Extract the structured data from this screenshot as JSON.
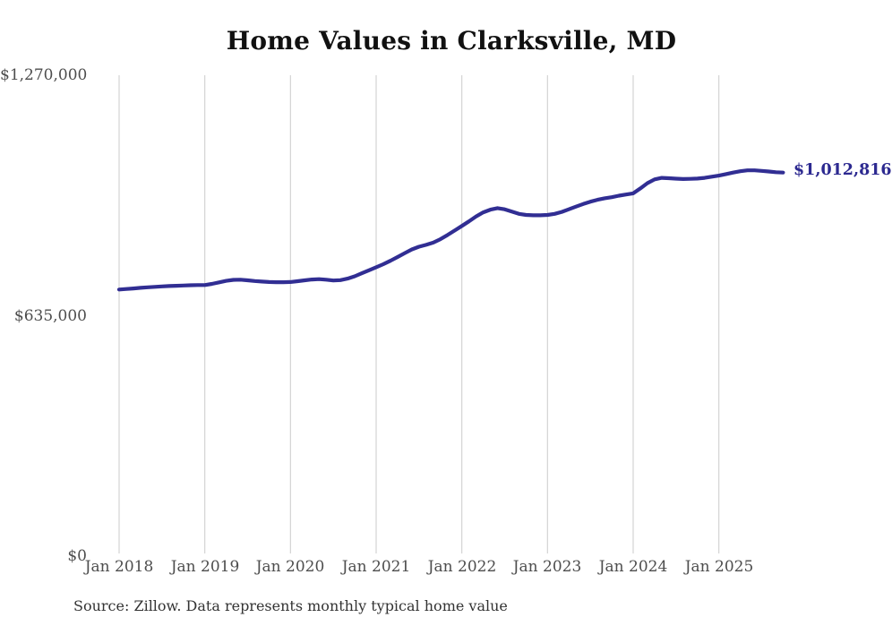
{
  "page": {
    "background": "#ffffff"
  },
  "title": {
    "text": "Home Values in Clarksville, MD",
    "color": "#111111"
  },
  "end_label": {
    "text": "$1,012,816",
    "color": "#2c2990"
  },
  "source_note": {
    "text": "Source: Zillow. Data represents monthly typical home value",
    "color": "#333333"
  },
  "colors": {
    "line": "#312e93",
    "gridline": "#cbcbcb",
    "tick_text": "#4d4d4d",
    "title_text": "#111111",
    "source_text": "#333333",
    "end_label_text": "#2c2990",
    "background": "#ffffff"
  },
  "chart_data": {
    "type": "line",
    "title": "Home Values in Clarksville, MD",
    "xlabel": "",
    "ylabel": "",
    "ylim": [
      0,
      1270000
    ],
    "grid": "vertical-only",
    "legend": "none",
    "x_start": "Jan 2018",
    "x_end": "Oct 2025",
    "frequency": "monthly",
    "x_ticks": [
      "Jan 2018",
      "Jan 2019",
      "Jan 2020",
      "Jan 2021",
      "Jan 2022",
      "Jan 2023",
      "Jan 2024",
      "Jan 2025"
    ],
    "y_ticks": [
      {
        "label": "$1,270,000",
        "value": 1270000
      },
      {
        "label": "$635,000",
        "value": 635000
      },
      {
        "label": "$0",
        "value": 0
      }
    ],
    "series": [
      {
        "name": "Monthly typical home value",
        "color": "#312e93",
        "latest_value_label": "$1,012,816",
        "values": [
          704000,
          705500,
          707000,
          708500,
          710000,
          711200,
          712300,
          713200,
          714000,
          714800,
          715400,
          715800,
          716000,
          719000,
          723000,
          727000,
          729500,
          730000,
          728500,
          726500,
          725000,
          724000,
          723500,
          723500,
          724000,
          726000,
          728500,
          730500,
          731500,
          730000,
          728000,
          729000,
          733000,
          739000,
          747000,
          755000,
          763000,
          771000,
          780000,
          790000,
          800000,
          810000,
          817000,
          822000,
          828000,
          837000,
          848000,
          860000,
          872000,
          884000,
          897000,
          908000,
          915000,
          919000,
          916000,
          910000,
          904000,
          901000,
          900000,
          900000,
          901000,
          904000,
          909000,
          916000,
          923000,
          930000,
          936000,
          941000,
          945000,
          948000,
          952000,
          955000,
          958000,
          971000,
          985000,
          995000,
          999000,
          998000,
          996800,
          996000,
          996300,
          997000,
          999000,
          1002000,
          1005000,
          1009000,
          1013000,
          1016500,
          1018800,
          1018800,
          1017500,
          1015800,
          1013800,
          1012816
        ]
      }
    ]
  }
}
